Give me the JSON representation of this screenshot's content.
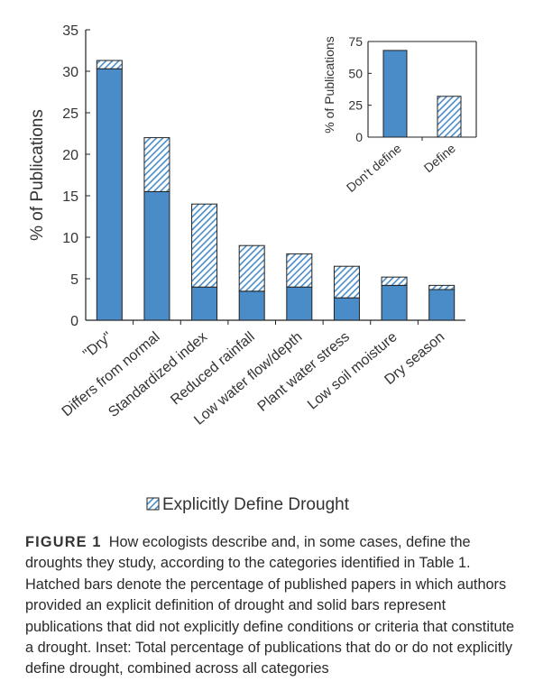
{
  "colors": {
    "bar": "#4a8cc8",
    "stroke": "#222222",
    "hatch_bg": "#ffffff",
    "axis": "#222222",
    "text": "#333333"
  },
  "chart_data": [
    {
      "type": "bar",
      "stacked": true,
      "ylabel": "% of Publications",
      "ylim": [
        0,
        35
      ],
      "yticks": [
        0,
        5,
        10,
        15,
        20,
        25,
        30,
        35
      ],
      "categories": [
        "\"Dry\"",
        "Differs from normal",
        "Standardized index",
        "Reduced rainfall",
        "Low water flow/depth",
        "Plant water stress",
        "Low soil moisture",
        "Dry season"
      ],
      "series": [
        {
          "style": "solid",
          "values": [
            30.3,
            15.5,
            4.0,
            3.5,
            4.0,
            2.7,
            4.2,
            3.7
          ]
        },
        {
          "name": "Explicitly Define Drought",
          "style": "hatched",
          "values": [
            1.0,
            6.5,
            10.0,
            5.5,
            4.0,
            3.8,
            1.0,
            0.5
          ]
        }
      ],
      "legend": "bottom-center",
      "grid": false
    },
    {
      "type": "bar",
      "inset": true,
      "ylabel": "% of Publications",
      "ylim": [
        0,
        75
      ],
      "yticks": [
        0,
        25,
        50,
        75
      ],
      "categories": [
        "Don't define",
        "Define"
      ],
      "series": [
        {
          "values": [
            68,
            32
          ],
          "styles": [
            "solid",
            "hatched"
          ]
        }
      ],
      "grid": false
    }
  ],
  "caption": {
    "label": "FIGURE 1",
    "text": "How ecologists describe and, in some cases, define the droughts they study, according to the categories identified in Table 1. Hatched bars denote the percentage of published papers in which authors provided an explicit definition of drought and solid bars represent publications that did not explicitly define conditions or criteria that constitute a drought. Inset: Total percentage of publications that do or do not explicitly define drought, combined across all categories"
  }
}
